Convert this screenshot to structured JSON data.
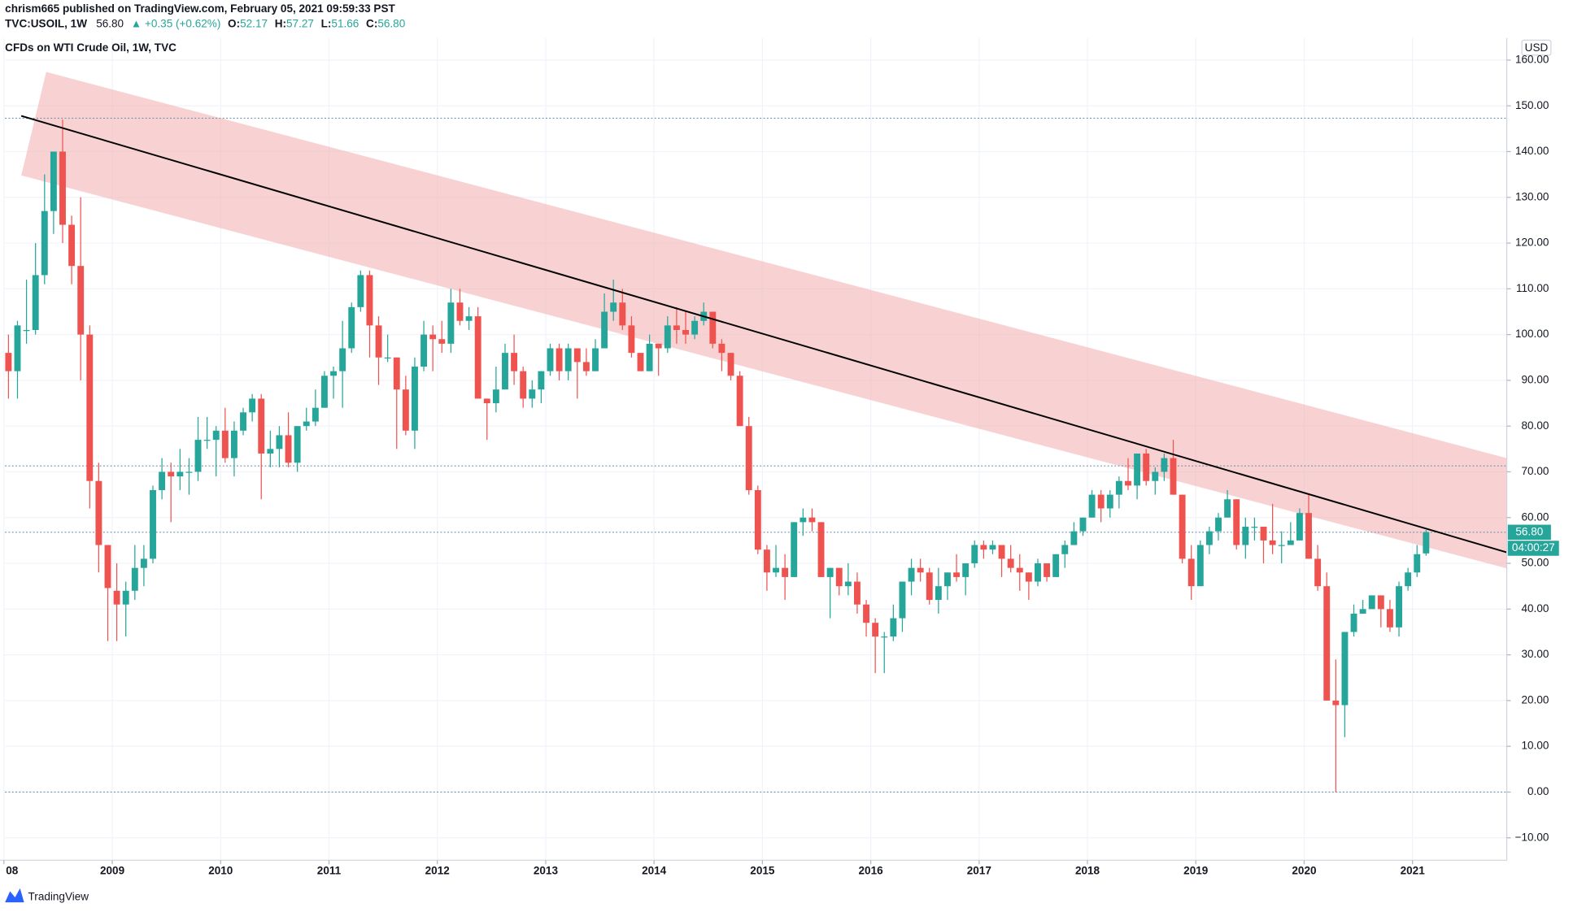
{
  "header": {
    "published": "chrism665 published on TradingView.com, February 05, 2021 09:59:33 PST",
    "symbol": "TVC:USOIL, 1W",
    "price": "56.80",
    "change": "▲ +0.35 (+0.62%)",
    "ohlc": [
      {
        "label": "O:",
        "value": "52.17"
      },
      {
        "label": "H:",
        "value": "57.27"
      },
      {
        "label": "L:",
        "value": "51.66"
      },
      {
        "label": "C:",
        "value": "56.80"
      }
    ]
  },
  "footer": {
    "brand": "TradingView"
  },
  "chart_data": {
    "type": "candlestick",
    "title": "CFDs on WTI Crude Oil, 1W, TVC",
    "currency": "USD",
    "up_color": "#26a69a",
    "down_color": "#ef5350",
    "grid": true,
    "last_price_label": "56.80",
    "countdown": "04:00:27",
    "xlim": [
      2008.01,
      2021.87
    ],
    "xticks": [
      {
        "value": 2008,
        "label": "08"
      },
      2009,
      2010,
      2011,
      2012,
      2013,
      2014,
      2015,
      2016,
      2017,
      2018,
      2019,
      2020,
      2021
    ],
    "ylim": [
      -14.9,
      164.8
    ],
    "yticks": [
      {
        "value": -10,
        "label": "−10.00"
      },
      {
        "value": 0,
        "label": "0.00"
      },
      {
        "value": 10,
        "label": "10.00"
      },
      {
        "value": 20,
        "label": "20.00"
      },
      {
        "value": 30,
        "label": "30.00"
      },
      {
        "value": 40,
        "label": "40.00"
      },
      {
        "value": 50,
        "label": "50.00"
      },
      {
        "value": 60,
        "label": "60.00"
      },
      {
        "value": 70,
        "label": "70.00"
      },
      {
        "value": 80,
        "label": "80.00"
      },
      {
        "value": 90,
        "label": "90.00"
      },
      {
        "value": 100,
        "label": "100.00"
      },
      {
        "value": 110,
        "label": "110.00"
      },
      {
        "value": 120,
        "label": "120.00"
      },
      {
        "value": 130,
        "label": "130.00"
      },
      {
        "value": 140,
        "label": "140.00"
      },
      {
        "value": 150,
        "label": "150.00"
      },
      {
        "value": 160,
        "label": "160.00"
      }
    ],
    "channel": {
      "color": "#f4b4b4",
      "upper": [
        [
          2008.39,
          157.4
        ],
        [
          2021.87,
          73
        ]
      ],
      "lower": [
        [
          2008.16,
          134.8
        ],
        [
          2021.87,
          48.9
        ]
      ]
    },
    "trendline": {
      "color": "#000000",
      "points": [
        [
          2008.16,
          147.8
        ],
        [
          2021.87,
          52.4
        ]
      ]
    },
    "levels": [
      147.3,
      71.3,
      56.8,
      0
    ],
    "x": [
      "2008-01",
      "2008-02",
      "2008-03",
      "2008-04",
      "2008-05",
      "2008-06",
      "2008-07",
      "2008-08",
      "2008-09",
      "2008-10",
      "2008-11",
      "2008-12",
      "2009-01",
      "2009-02",
      "2009-03",
      "2009-04",
      "2009-05",
      "2009-06",
      "2009-07",
      "2009-08",
      "2009-09",
      "2009-10",
      "2009-11",
      "2009-12",
      "2010-01",
      "2010-02",
      "2010-03",
      "2010-04",
      "2010-05",
      "2010-06",
      "2010-07",
      "2010-08",
      "2010-09",
      "2010-10",
      "2010-11",
      "2010-12",
      "2011-01",
      "2011-02",
      "2011-03",
      "2011-04",
      "2011-05",
      "2011-06",
      "2011-07",
      "2011-08",
      "2011-09",
      "2011-10",
      "2011-11",
      "2011-12",
      "2012-01",
      "2012-02",
      "2012-03",
      "2012-04",
      "2012-05",
      "2012-06",
      "2012-07",
      "2012-08",
      "2012-09",
      "2012-10",
      "2012-11",
      "2012-12",
      "2013-01",
      "2013-02",
      "2013-03",
      "2013-04",
      "2013-05",
      "2013-06",
      "2013-07",
      "2013-08",
      "2013-09",
      "2013-10",
      "2013-11",
      "2013-12",
      "2014-01",
      "2014-02",
      "2014-03",
      "2014-04",
      "2014-05",
      "2014-06",
      "2014-07",
      "2014-08",
      "2014-09",
      "2014-10",
      "2014-11",
      "2014-12",
      "2015-01",
      "2015-02",
      "2015-03",
      "2015-04",
      "2015-05",
      "2015-06",
      "2015-07",
      "2015-08",
      "2015-09",
      "2015-10",
      "2015-11",
      "2015-12",
      "2016-01",
      "2016-02",
      "2016-03",
      "2016-04",
      "2016-05",
      "2016-06",
      "2016-07",
      "2016-08",
      "2016-09",
      "2016-10",
      "2016-11",
      "2016-12",
      "2017-01",
      "2017-02",
      "2017-03",
      "2017-04",
      "2017-05",
      "2017-06",
      "2017-07",
      "2017-08",
      "2017-09",
      "2017-10",
      "2017-11",
      "2017-12",
      "2018-01",
      "2018-02",
      "2018-03",
      "2018-04",
      "2018-05",
      "2018-06",
      "2018-07",
      "2018-08",
      "2018-09",
      "2018-10",
      "2018-11",
      "2018-12",
      "2019-01",
      "2019-02",
      "2019-03",
      "2019-04",
      "2019-05",
      "2019-06",
      "2019-07",
      "2019-08",
      "2019-09",
      "2019-10",
      "2019-11",
      "2019-12",
      "2020-01",
      "2020-02",
      "2020-03",
      "2020-04",
      "2020-05",
      "2020-06",
      "2020-07",
      "2020-08",
      "2020-09",
      "2020-10",
      "2020-11",
      "2020-12",
      "2021-01",
      "2021-02"
    ],
    "open": [
      96,
      92,
      101,
      101,
      113,
      127,
      140,
      124,
      115,
      100,
      68,
      54,
      44,
      41,
      44,
      49,
      51,
      66,
      70,
      69,
      70,
      70,
      77,
      77,
      79,
      73,
      79,
      83,
      86,
      74,
      75,
      78,
      72,
      80,
      81,
      84,
      91,
      92,
      97,
      106,
      113,
      102,
      95,
      95,
      88,
      79,
      93,
      100,
      99,
      98,
      107,
      103,
      104,
      86,
      85,
      88,
      96,
      92,
      86,
      88,
      92,
      97,
      92,
      97,
      94,
      92,
      97,
      105,
      107,
      102,
      96,
      92,
      98,
      97,
      102,
      101,
      100,
      103,
      105,
      98,
      96,
      91,
      80,
      66,
      53,
      48,
      49,
      47,
      59,
      60,
      59,
      47,
      49,
      45,
      46,
      41,
      37,
      34,
      34,
      38,
      46,
      49,
      48,
      42,
      45,
      48,
      47,
      50,
      54,
      53,
      54,
      51,
      49,
      48,
      46,
      50,
      47,
      52,
      54,
      57,
      60,
      65,
      62,
      65,
      68,
      67,
      74,
      68,
      70,
      73,
      65,
      51,
      45,
      54,
      57,
      60,
      64,
      54,
      58,
      58,
      55,
      54,
      54,
      55,
      61,
      51,
      45,
      20,
      19,
      35,
      39,
      40,
      43,
      40,
      36,
      45,
      48,
      52.17
    ],
    "high": [
      100,
      103,
      112,
      120,
      135,
      140,
      147,
      126,
      130,
      102,
      72,
      54,
      50,
      46,
      54,
      54,
      67,
      73,
      72,
      75,
      73,
      82,
      82,
      80,
      84,
      81,
      84,
      87,
      87,
      79,
      80,
      83,
      80,
      84,
      88,
      92,
      93,
      103,
      107,
      114,
      114,
      104,
      100,
      95,
      91,
      95,
      103,
      102,
      103,
      110,
      110,
      106,
      106,
      86,
      93,
      98,
      100,
      93,
      90,
      92,
      98,
      98,
      98,
      97,
      97,
      99,
      109,
      112,
      110,
      104,
      96,
      100,
      98,
      104,
      106,
      105,
      104,
      107,
      105,
      99,
      96,
      92,
      82,
      67,
      54,
      54,
      52,
      59,
      62,
      62,
      59,
      49,
      49,
      50,
      48,
      42,
      38,
      35,
      41,
      46,
      51,
      51,
      49,
      49,
      48,
      52,
      50,
      55,
      55,
      55,
      54,
      54,
      52,
      48,
      51,
      50,
      52,
      55,
      59,
      60,
      66,
      66,
      66,
      69,
      73,
      74,
      75,
      71,
      74,
      77,
      65,
      54,
      55,
      58,
      61,
      66,
      64,
      60,
      60,
      58,
      63,
      57,
      59,
      62,
      65,
      54,
      48,
      29,
      35,
      41,
      42,
      43,
      43,
      42,
      46,
      49,
      54,
      57.27
    ],
    "low": [
      86,
      86,
      98,
      100,
      111,
      122,
      120,
      111,
      90,
      62,
      48,
      33,
      33,
      34,
      42,
      45,
      50,
      64,
      59,
      66,
      65,
      68,
      75,
      69,
      72,
      69,
      78,
      81,
      64,
      71,
      71,
      71,
      70,
      79,
      80,
      84,
      86,
      84,
      96,
      105,
      95,
      89,
      94,
      75,
      78,
      75,
      92,
      92,
      96,
      96,
      102,
      101,
      86,
      77,
      83,
      88,
      89,
      84,
      84,
      85,
      91,
      90,
      90,
      86,
      91,
      92,
      97,
      103,
      101,
      95,
      92,
      92,
      91,
      96,
      98,
      98,
      99,
      102,
      97,
      92,
      90,
      80,
      65,
      52,
      44,
      47,
      42,
      47,
      56,
      57,
      47,
      38,
      43,
      43,
      39,
      34,
      26,
      26,
      33,
      35,
      43,
      46,
      41,
      39,
      42,
      46,
      43,
      49,
      51,
      52,
      47,
      48,
      44,
      42,
      45,
      46,
      47,
      49,
      54,
      56,
      60,
      59,
      60,
      62,
      66,
      64,
      67,
      65,
      68,
      65,
      50,
      42,
      45,
      52,
      55,
      60,
      53,
      51,
      55,
      50,
      52,
      50,
      54,
      55,
      51,
      44,
      20,
      0,
      12,
      34,
      39,
      40,
      36,
      35,
      34,
      44,
      47,
      51.66
    ],
    "close": [
      92,
      102,
      101,
      113,
      127,
      140,
      124,
      115,
      100,
      68,
      54,
      44.6,
      41,
      44,
      49,
      51,
      66,
      70,
      69,
      70,
      70,
      77,
      77,
      79,
      73,
      79,
      83,
      86,
      74,
      75,
      78,
      72,
      80,
      81,
      84,
      91,
      92,
      97,
      106,
      113,
      102,
      95,
      95,
      88,
      79,
      93,
      100,
      99,
      98,
      107,
      103,
      104,
      86,
      85,
      88,
      96,
      92,
      86,
      88,
      92,
      97,
      92,
      97,
      94,
      92,
      97,
      105,
      107,
      102,
      96,
      92,
      98,
      97,
      102,
      101,
      100,
      103,
      105,
      98,
      96,
      91,
      80,
      66,
      53,
      48,
      49,
      47,
      59,
      60,
      59,
      47,
      49,
      45,
      46,
      41,
      37,
      34,
      34,
      38,
      46,
      49,
      48,
      42,
      45,
      48,
      47,
      50,
      54,
      53,
      54,
      51,
      49,
      48,
      46,
      50,
      47,
      52,
      54,
      57,
      60,
      65,
      62,
      65,
      68,
      67,
      74,
      68,
      70,
      73,
      65,
      51,
      45,
      54,
      57,
      60,
      64,
      54,
      58,
      58,
      55,
      54,
      54,
      55,
      61,
      51,
      45,
      20,
      19,
      35,
      39,
      40,
      43,
      40,
      36,
      45,
      48,
      52,
      56.8
    ]
  }
}
